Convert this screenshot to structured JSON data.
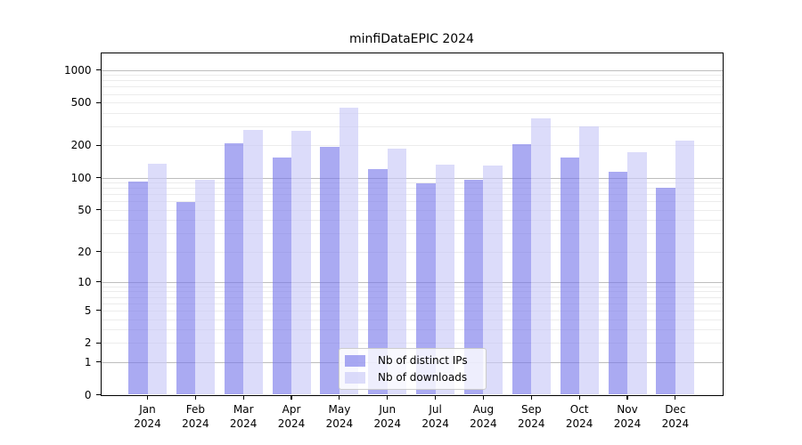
{
  "chart_data": {
    "type": "bar",
    "title": "minfiDataEPIC 2024",
    "categories": [
      "Jan 2024",
      "Feb 2024",
      "Mar 2024",
      "Apr 2024",
      "May 2024",
      "Jun 2024",
      "Jul 2024",
      "Aug 2024",
      "Sep 2024",
      "Oct 2024",
      "Nov 2024",
      "Dec 2024"
    ],
    "x_months": [
      "Jan",
      "Feb",
      "Mar",
      "Apr",
      "May",
      "Jun",
      "Jul",
      "Aug",
      "Sep",
      "Oct",
      "Nov",
      "Dec"
    ],
    "x_year": "2024",
    "series": [
      {
        "name": "Nb of distinct IPs",
        "color": "rgba(118,118,234,0.62)",
        "values": [
          93,
          59,
          210,
          155,
          195,
          120,
          88,
          96,
          205,
          153,
          113,
          81
        ]
      },
      {
        "name": "Nb of downloads",
        "color": "rgba(201,201,247,0.65)",
        "values": [
          135,
          95,
          280,
          275,
          450,
          188,
          133,
          130,
          360,
          300,
          172,
          222
        ]
      }
    ],
    "yscale": "log10(value+1)",
    "yticks": [
      0,
      1,
      2,
      5,
      10,
      20,
      50,
      100,
      200,
      500,
      1000
    ],
    "ytick_labels": [
      "0",
      "1",
      "2",
      "5",
      "10",
      "20",
      "50",
      "100",
      "200",
      "500",
      "1000"
    ],
    "ylim": [
      0,
      1450
    ],
    "xlabel": "",
    "ylabel": "",
    "grid": {
      "major_at": [
        1,
        10,
        100,
        1000
      ],
      "minor_decades": [
        1,
        10,
        100
      ],
      "minor_multiples": [
        2,
        3,
        4,
        5,
        6,
        7,
        8,
        9
      ],
      "major_color": "#bdbdbd",
      "minor_color": "#ececec"
    },
    "legend_position": "lower center"
  },
  "colors": {
    "background": "#ffffff",
    "bar_distinct_ips_rendered": "#aaaaf2",
    "bar_downloads_rendered": "#dcdcfa",
    "axis": "#000000"
  }
}
